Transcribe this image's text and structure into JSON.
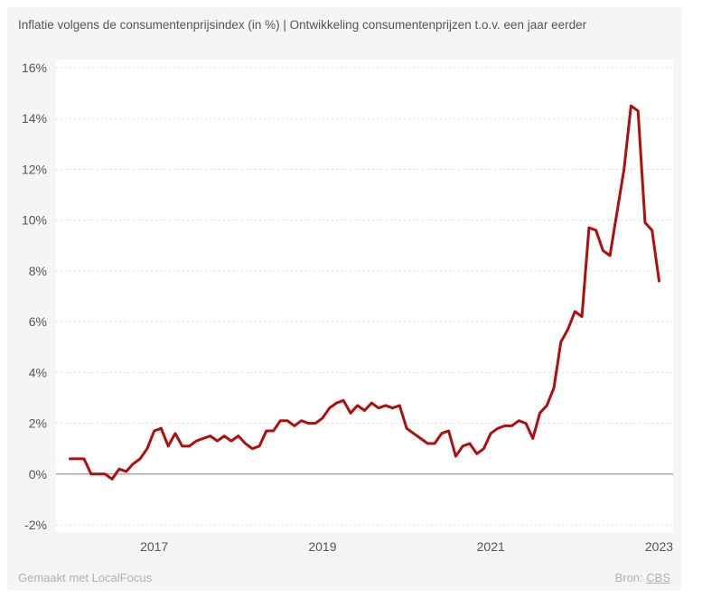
{
  "header": {
    "title": "Inflatie volgens de consumentenprijsindex (in %) | Ontwikkeling consumentenprijzen t.o.v. een jaar eerder"
  },
  "footer": {
    "made_with": "Gemaakt met LocalFocus",
    "source_prefix": "Bron:",
    "source_link": "CBS"
  },
  "colors": {
    "series": "#b00d0d",
    "grid": "#dddddd",
    "zero_line": "#aaaaaa",
    "plot_bg": "#ffffff",
    "card_bg": "#f5f5f5"
  },
  "chart_data": {
    "type": "line",
    "title": "Inflatie volgens de consumentenprijsindex (in %) | Ontwikkeling consumentenprijzen t.o.v. een jaar eerder",
    "xlabel": "",
    "ylabel": "",
    "x_start": "2016-01",
    "x_frequency": "monthly",
    "xlim": [
      "2015-11",
      "2023-03"
    ],
    "ylim": [
      -2,
      16
    ],
    "y_ticks": [
      -2,
      0,
      2,
      4,
      6,
      8,
      10,
      12,
      14,
      16
    ],
    "y_tick_labels": [
      "-2%",
      "0%",
      "2%",
      "4%",
      "6%",
      "8%",
      "10%",
      "12%",
      "14%",
      "16%"
    ],
    "x_ticks": [
      "2017-01",
      "2019-01",
      "2021-01",
      "2023-01"
    ],
    "x_tick_labels": [
      "2017",
      "2019",
      "2021",
      "2023"
    ],
    "grid": true,
    "legend": "none",
    "series": [
      {
        "values": [
          0.6,
          0.6,
          0.6,
          0.0,
          0.0,
          0.0,
          -0.2,
          0.2,
          0.1,
          0.4,
          0.6,
          1.0,
          1.7,
          1.8,
          1.1,
          1.6,
          1.1,
          1.1,
          1.3,
          1.4,
          1.5,
          1.3,
          1.5,
          1.3,
          1.5,
          1.2,
          1.0,
          1.1,
          1.7,
          1.7,
          2.1,
          2.1,
          1.9,
          2.1,
          2.0,
          2.0,
          2.2,
          2.6,
          2.8,
          2.9,
          2.4,
          2.7,
          2.5,
          2.8,
          2.6,
          2.7,
          2.6,
          2.7,
          1.8,
          1.6,
          1.4,
          1.2,
          1.2,
          1.6,
          1.7,
          0.7,
          1.1,
          1.2,
          0.8,
          1.0,
          1.6,
          1.8,
          1.9,
          1.9,
          2.1,
          2.0,
          1.4,
          2.4,
          2.7,
          3.4,
          5.2,
          5.7,
          6.4,
          6.2,
          9.7,
          9.6,
          8.8,
          8.6,
          10.3,
          12.0,
          14.5,
          14.3,
          9.9,
          9.6,
          7.6
        ]
      }
    ]
  }
}
